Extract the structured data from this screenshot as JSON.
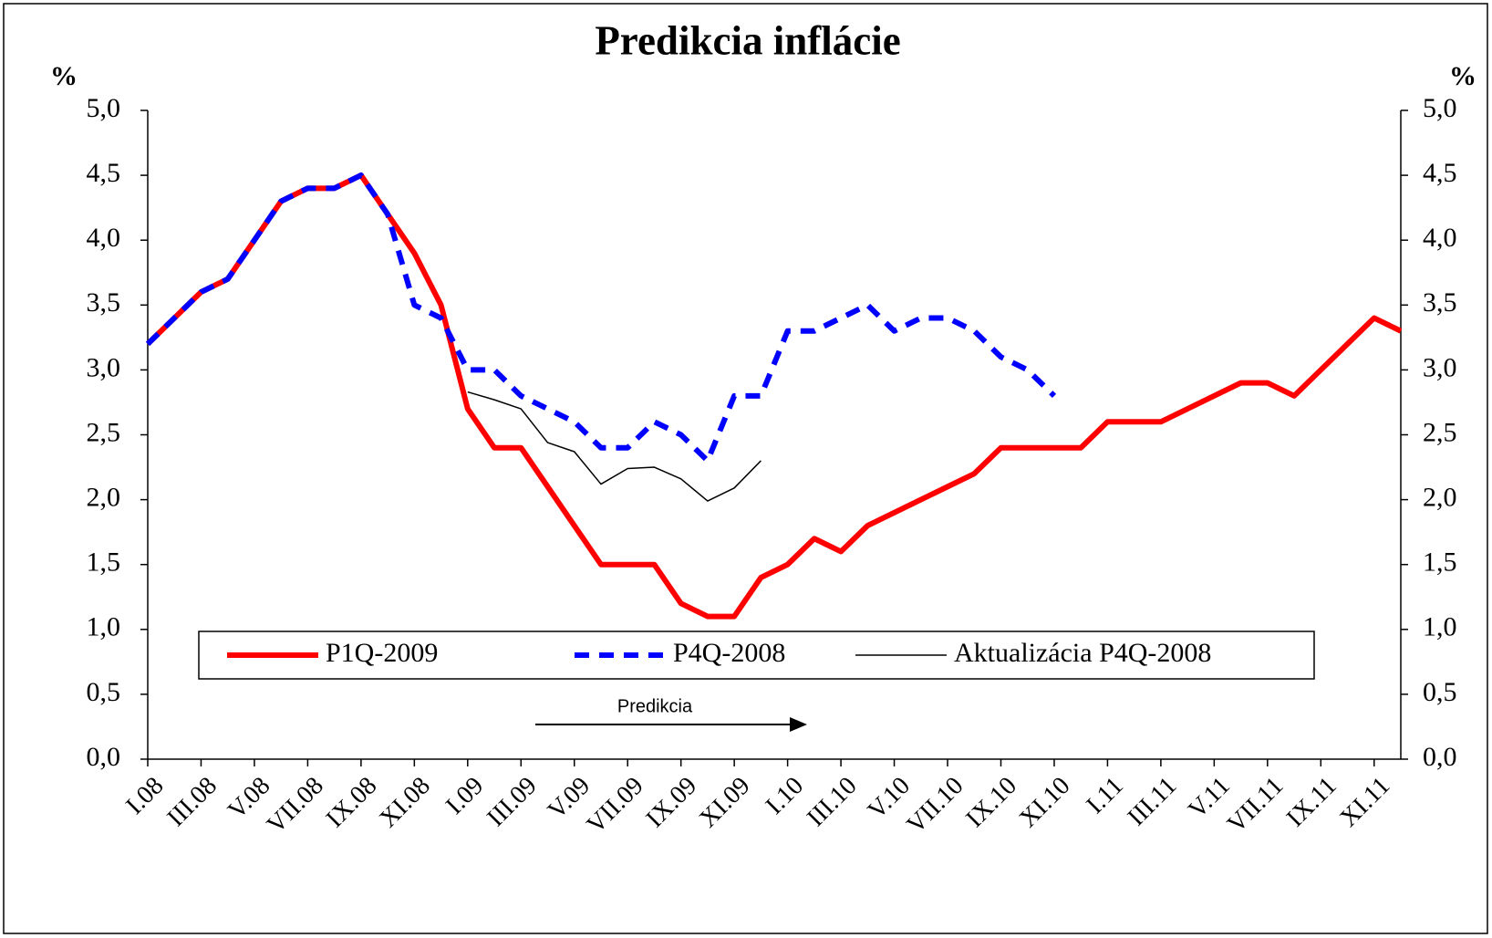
{
  "chart_data": {
    "type": "line",
    "title": "Predikcia inflácie",
    "ylabel": "%",
    "y2label": "%",
    "categories": [
      "I.08",
      null,
      "III.08",
      null,
      "V.08",
      null,
      "VII.08",
      null,
      "IX.08",
      null,
      "XI.08",
      null,
      "I.09",
      null,
      "III.09",
      null,
      "V.09",
      null,
      "VII.09",
      null,
      "IX.09",
      null,
      "XI.09",
      null,
      "I.10",
      null,
      "III.10",
      null,
      "V.10",
      null,
      "VII.10",
      null,
      "IX.10",
      null,
      "XI.10",
      null,
      "I.11",
      null,
      "III.11",
      null,
      "V.11",
      null,
      "VII.11",
      null,
      "IX.11",
      null,
      "XI.11",
      null
    ],
    "series": [
      {
        "name": "P1Q-2009",
        "color": "#ff0000",
        "weight": "thick",
        "dashed": false,
        "values": [
          3.2,
          3.4,
          3.6,
          3.7,
          4.0,
          4.3,
          4.4,
          4.4,
          4.5,
          4.2,
          3.9,
          3.5,
          2.7,
          2.4,
          2.4,
          2.1,
          1.8,
          1.5,
          1.5,
          1.5,
          1.2,
          1.1,
          1.1,
          1.4,
          1.5,
          1.7,
          1.6,
          1.8,
          1.9,
          2.0,
          2.1,
          2.2,
          2.4,
          2.4,
          2.4,
          2.4,
          2.6,
          2.6,
          2.6,
          2.7,
          2.8,
          2.9,
          2.9,
          2.8,
          3.0,
          3.2,
          3.4,
          3.3
        ]
      },
      {
        "name": "P4Q-2008",
        "color": "#0000ff",
        "weight": "thick",
        "dashed": true,
        "values": [
          3.2,
          3.4,
          3.6,
          3.7,
          4.0,
          4.3,
          4.4,
          4.4,
          4.5,
          4.2,
          3.5,
          3.4,
          3.0,
          3.0,
          2.8,
          2.7,
          2.6,
          2.4,
          2.4,
          2.6,
          2.5,
          2.3,
          2.8,
          2.8,
          3.3,
          3.3,
          3.4,
          3.5,
          3.3,
          3.4,
          3.4,
          3.3,
          3.1,
          3.0,
          2.8,
          null,
          null,
          null,
          null,
          null,
          null,
          null,
          null,
          null,
          null,
          null,
          null,
          null
        ]
      },
      {
        "name": "Aktualizácia P4Q-2008",
        "color": "#000000",
        "weight": "thin",
        "dashed": false,
        "values": [
          null,
          null,
          null,
          null,
          null,
          null,
          null,
          null,
          null,
          null,
          null,
          null,
          2.83,
          2.77,
          2.7,
          2.44,
          2.37,
          2.12,
          2.24,
          2.25,
          2.16,
          1.99,
          2.09,
          2.3,
          null,
          null,
          null,
          null,
          null,
          null,
          null,
          null,
          null,
          null,
          null,
          null,
          null,
          null,
          null,
          null,
          null,
          null,
          null,
          null,
          null,
          null,
          null,
          null
        ]
      }
    ],
    "ylim": [
      0,
      5
    ],
    "y2lim": [
      0,
      5
    ],
    "yticks": [
      {
        "value": 0,
        "label": "0,0"
      },
      {
        "value": 0.5,
        "label": "0,5"
      },
      {
        "value": 1,
        "label": "1,0"
      },
      {
        "value": 1.5,
        "label": "1,5"
      },
      {
        "value": 2,
        "label": "2,0"
      },
      {
        "value": 2.5,
        "label": "2,5"
      },
      {
        "value": 3,
        "label": "3,0"
      },
      {
        "value": 3.5,
        "label": "3,5"
      },
      {
        "value": 4,
        "label": "4,0"
      },
      {
        "value": 4.5,
        "label": "4,5"
      },
      {
        "value": 5,
        "label": "5,0"
      }
    ],
    "y2ticks": [
      {
        "value": 0,
        "label": "0,0"
      },
      {
        "value": 0.5,
        "label": "0,5"
      },
      {
        "value": 1,
        "label": "1,0"
      },
      {
        "value": 1.5,
        "label": "1,5"
      },
      {
        "value": 2,
        "label": "2,0"
      },
      {
        "value": 2.5,
        "label": "2,5"
      },
      {
        "value": 3,
        "label": "3,0"
      },
      {
        "value": 3.5,
        "label": "3,5"
      },
      {
        "value": 4,
        "label": "4,0"
      },
      {
        "value": 4.5,
        "label": "4,5"
      },
      {
        "value": 5,
        "label": "5,0"
      }
    ],
    "grid": false,
    "annotation": "Predikcia"
  }
}
